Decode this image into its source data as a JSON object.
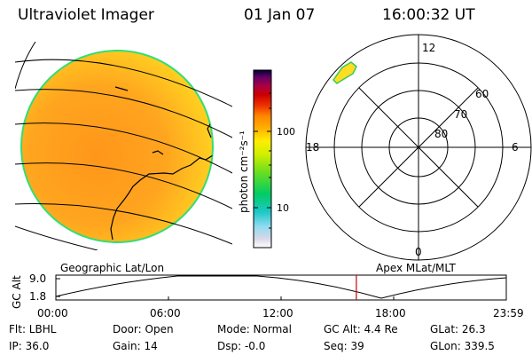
{
  "header": {
    "instrument": "Ultraviolet Imager",
    "date": "01 Jan 07",
    "time": "16:00:32 UT"
  },
  "colorbar": {
    "unit_label": "photon cm⁻²s⁻¹",
    "ticks": [
      "100",
      "10"
    ],
    "scale": "log"
  },
  "polar_plot": {
    "mlt_labels": {
      "top": "12",
      "bottom": "0",
      "left": "18",
      "right": "6"
    },
    "lat_labels": [
      "60",
      "70",
      "80"
    ]
  },
  "timeline": {
    "left_title": "Geographic Lat/Lon",
    "right_title": "Apex MLat/MLT",
    "axis_label": "GC Alt",
    "y_max": "9.0",
    "y_min": "1.8",
    "time_ticks": [
      "00:00",
      "06:00",
      "12:00",
      "18:00",
      "23:59"
    ],
    "current_time_hours": 16.01
  },
  "info": {
    "flt": "Flt: LBHL",
    "ip": "IP: 36.0",
    "door": "Door: Open",
    "gain": "Gain: 14",
    "mode": "Mode: Normal",
    "dsp": "Dsp:  -0.0",
    "gcalt": "GC Alt: 4.4 Re",
    "seq": "Seq: 39",
    "glat": "GLat:  26.3",
    "glon": "GLon: 339.5"
  },
  "colors": {
    "disk_outer": "#ffcc00",
    "disk_inner": "#ff9a1a",
    "outline": "#00cc66",
    "marker": "#cc0000"
  }
}
